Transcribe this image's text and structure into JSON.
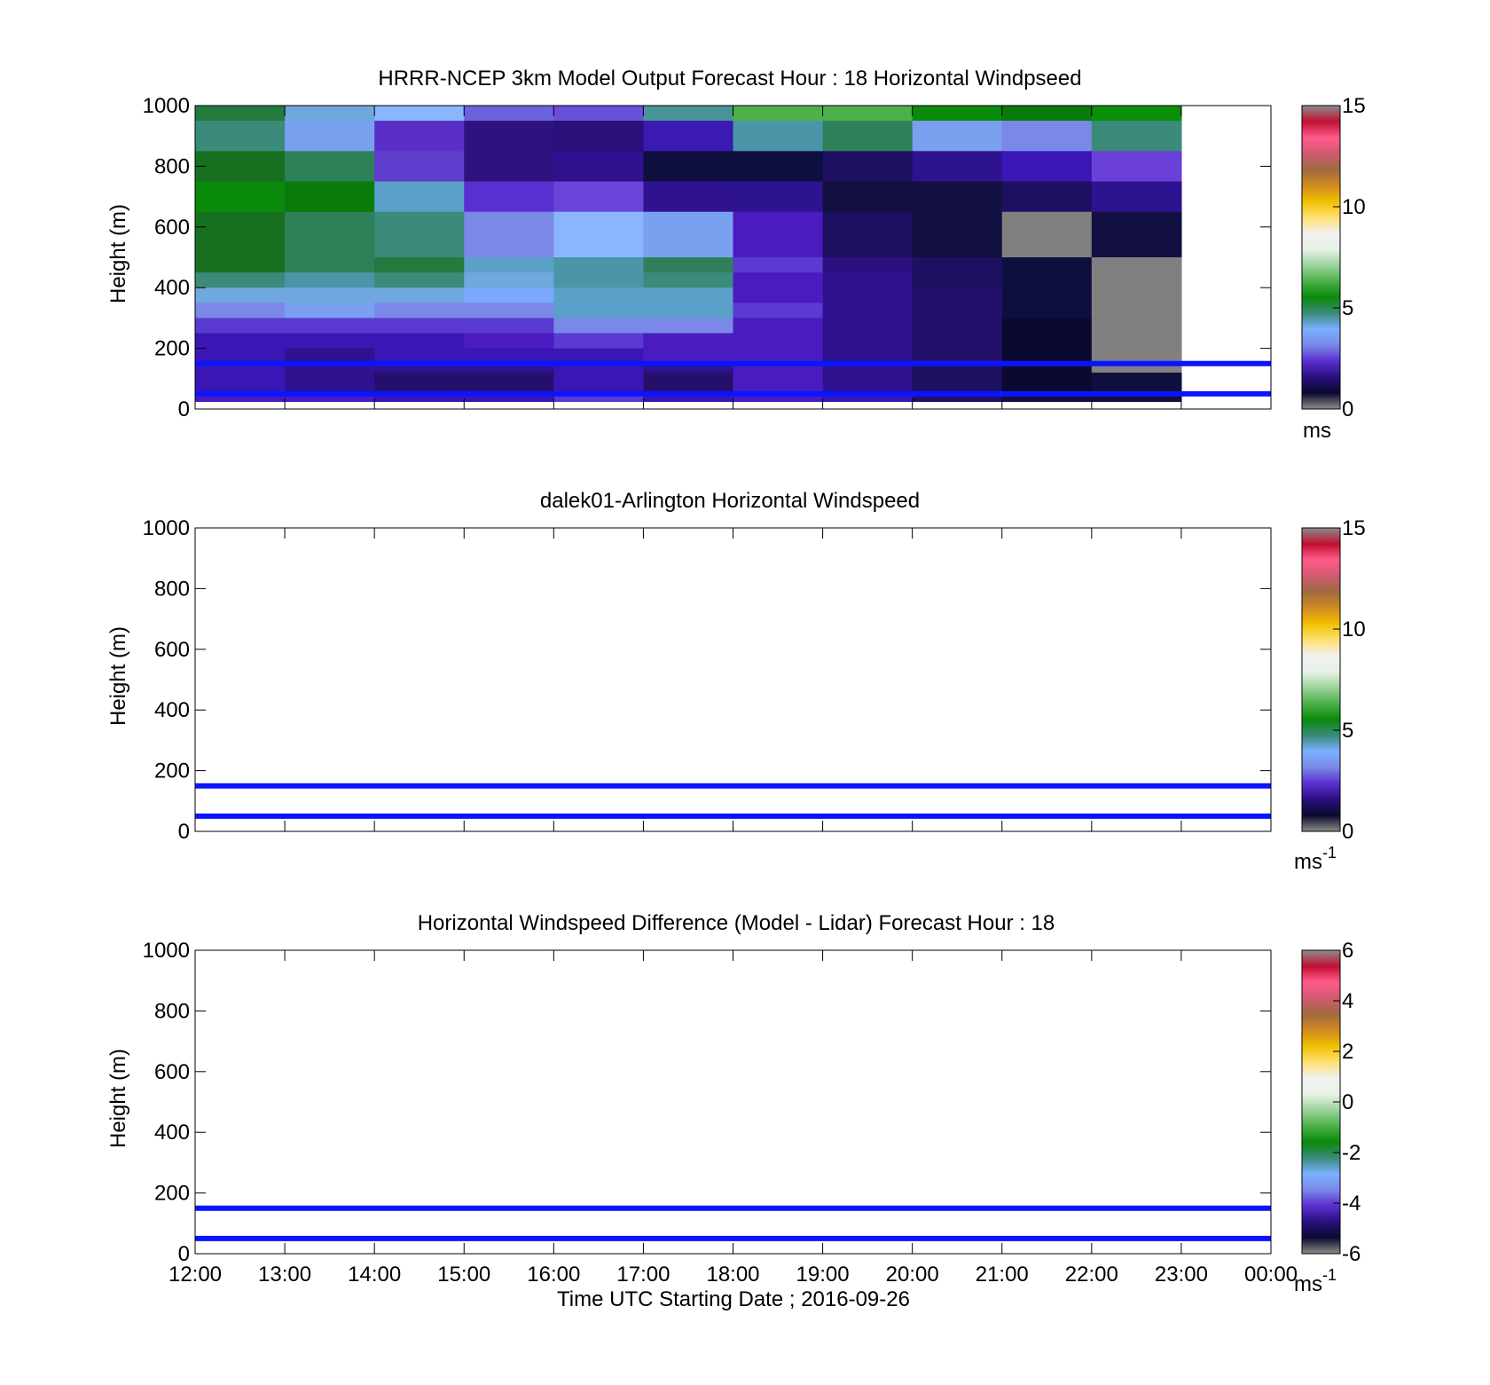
{
  "chart_data": [
    {
      "type": "heatmap",
      "title": "HRRR-NCEP 3km Model Output   Forecast Hour : 18 Horizontal Windpseed",
      "ylabel": "Height (m)",
      "xlabel": "",
      "ylim": [
        0,
        1000
      ],
      "yticks": [
        "0",
        "200",
        "400",
        "600",
        "800",
        "1000"
      ],
      "xticks_shown": false,
      "colorbar": {
        "min": 0,
        "max": 15,
        "ticks": [
          "0",
          "5",
          "10",
          "15"
        ],
        "unit": "ms",
        "unit_sup": ""
      },
      "reference_lines_m": [
        50,
        150
      ],
      "x_start_hours": [
        12,
        13,
        14,
        15,
        16,
        17,
        18,
        19,
        20,
        21,
        22
      ],
      "rows": [
        {
          "y0": 950,
          "y1": 1000,
          "colors": [
            "#237a3e",
            "#6fa8dc",
            "#8ab6ff",
            "#6a63dd",
            "#6a4fd8",
            "#4a9399",
            "#4db04a",
            "#4db04a",
            "#0a8a0a",
            "#0a7a0a",
            "#0a8f0a"
          ]
        },
        {
          "y0": 850,
          "y1": 950,
          "colors": [
            "#3a8b7a",
            "#7aa0f0",
            "#5a2fc8",
            "#2e1280",
            "#2a1078",
            "#3a1ab0",
            "#4a96a8",
            "#2e7f5a",
            "#7aa0f0",
            "#7a88e8",
            "#3a8b7a"
          ]
        },
        {
          "y0": 750,
          "y1": 850,
          "colors": [
            "#167020",
            "#2e8058",
            "#5e3ccc",
            "#2e1280",
            "#2e1290",
            "#0f0f3f",
            "#0f0f3f",
            "#1e1060",
            "#2e1390",
            "#3a16b4",
            "#6a40d8"
          ]
        },
        {
          "y0": 650,
          "y1": 750,
          "colors": [
            "#0a8a0a",
            "#0a7a0a",
            "#5aa0c8",
            "#5a2fd0",
            "#6a44d8",
            "#2e1290",
            "#2e1390",
            "#121040",
            "#121040",
            "#1e1060",
            "#2e1390"
          ]
        },
        {
          "y0": 500,
          "y1": 650,
          "colors": [
            "#167020",
            "#2e8058",
            "#3a8b7a",
            "#7a88e8",
            "#8ab6ff",
            "#7aa0f0",
            "#4a1cc0",
            "#1e1060",
            "#121040",
            "#808080",
            "#121040"
          ]
        },
        {
          "y0": 450,
          "y1": 500,
          "colors": [
            "#167020",
            "#2e8058",
            "#237a3e",
            "#5aa0c8",
            "#4a96a8",
            "#2e7f5a",
            "#5a3ad0",
            "#2a1080",
            "#1e1060",
            "#0f0f3f",
            "#808080"
          ]
        },
        {
          "y0": 400,
          "y1": 450,
          "colors": [
            "#3a8b7a",
            "#4a96a8",
            "#3a8b7a",
            "#6fa8dc",
            "#4a96a8",
            "#3a8b7a",
            "#4a1cc0",
            "#2e1290",
            "#1e1060",
            "#0f0f3f",
            "#808080"
          ]
        },
        {
          "y0": 350,
          "y1": 400,
          "colors": [
            "#6fa8dc",
            "#6fa8dc",
            "#6fa8dc",
            "#7aa8ff",
            "#5aa0c8",
            "#5aa0c8",
            "#4a1cc0",
            "#2e1290",
            "#24106a",
            "#0f0f3f",
            "#808080"
          ]
        },
        {
          "y0": 300,
          "y1": 350,
          "colors": [
            "#7a88e8",
            "#7aa0f0",
            "#7a88e8",
            "#7a88e8",
            "#5aa0c8",
            "#5aa0c8",
            "#5a3ad0",
            "#2e1290",
            "#24106a",
            "#0f0f3f",
            "#808080"
          ]
        },
        {
          "y0": 250,
          "y1": 300,
          "colors": [
            "#5a3ad0",
            "#5a3ad0",
            "#5a3ad0",
            "#5a3ad0",
            "#7a88e8",
            "#7a88e8",
            "#4a1cc0",
            "#2e1290",
            "#24106a",
            "#0a0a30",
            "#808080"
          ]
        },
        {
          "y0": 200,
          "y1": 250,
          "colors": [
            "#3a16b4",
            "#3a16b4",
            "#3a16b4",
            "#4a1cc0",
            "#5a3ad0",
            "#4a1cc0",
            "#4a1cc0",
            "#2e1290",
            "#24106a",
            "#0a0a30",
            "#808080"
          ]
        },
        {
          "y0": 150,
          "y1": 200,
          "colors": [
            "#3a16b4",
            "#2e1290",
            "#3a16b4",
            "#3a16b4",
            "#3a16b4",
            "#4a1cc0",
            "#4a1cc0",
            "#2e1290",
            "#24106a",
            "#0a0a30",
            "#808080"
          ]
        },
        {
          "y0": 120,
          "y1": 150,
          "colors": [
            "#3a16b4",
            "#2e1290",
            "#2e1290",
            "#2e1290",
            "#3a16b4",
            "#2e1290",
            "#4a1cc0",
            "#2e1290",
            "#1e1060",
            "#0a0a30",
            "#808080"
          ]
        },
        {
          "y0": 50,
          "y1": 120,
          "colors": [
            "#3a16b4",
            "#2e1290",
            "#24106a",
            "#24106a",
            "#3a16b4",
            "#24106a",
            "#4a1cc0",
            "#2e1290",
            "#1e1060",
            "#0a0a30",
            "#0f0f3f"
          ]
        },
        {
          "y0": 25,
          "y1": 50,
          "colors": [
            "#4a1cc0",
            "#4a1cc0",
            "#3a16b4",
            "#3a16b4",
            "#5a3ad0",
            "#3a16b4",
            "#4a1cc0",
            "#3a16b4",
            "#24106a",
            "#121040",
            "#121040"
          ]
        }
      ]
    },
    {
      "type": "heatmap",
      "title": "dalek01-Arlington  Horizontal Windspeed",
      "ylabel": "Height (m)",
      "xlabel": "",
      "ylim": [
        0,
        1000
      ],
      "yticks": [
        "0",
        "200",
        "400",
        "600",
        "800",
        "1000"
      ],
      "xticks_shown": false,
      "colorbar": {
        "min": 0,
        "max": 15,
        "ticks": [
          "0",
          "5",
          "10",
          "15"
        ],
        "unit": "ms",
        "unit_sup": "-1"
      },
      "reference_lines_m": [
        50,
        150
      ],
      "rows": []
    },
    {
      "type": "heatmap",
      "title": "Horizontal Windspeed Difference (Model - Lidar) Forecast Hour : 18",
      "ylabel": "Height (m)",
      "xlabel": "Time UTC  Starting Date ; 2016-09-26",
      "ylim": [
        0,
        1000
      ],
      "yticks": [
        "0",
        "200",
        "400",
        "600",
        "800",
        "1000"
      ],
      "xticks_shown": true,
      "colorbar": {
        "min": -6,
        "max": 6,
        "ticks": [
          "-6",
          "-4",
          "-2",
          "0",
          "2",
          "4",
          "6"
        ],
        "unit": "ms",
        "unit_sup": "-1"
      },
      "reference_lines_m": [
        50,
        150
      ],
      "rows": []
    }
  ],
  "xaxis": {
    "ticks": [
      "12:00",
      "13:00",
      "14:00",
      "15:00",
      "16:00",
      "17:00",
      "18:00",
      "19:00",
      "20:00",
      "21:00",
      "22:00",
      "23:00",
      "00:00"
    ]
  },
  "colormap_stops": [
    "#8c8c8c",
    "#0a0a2e",
    "#2a1080",
    "#5a2fd0",
    "#7a88e8",
    "#7ab0ff",
    "#3a8b7a",
    "#0a8a0a",
    "#4db04a",
    "#9bd39b",
    "#e8f2e8",
    "#f0f0f0",
    "#ffe070",
    "#f0c000",
    "#d08a20",
    "#a06a40",
    "#d05a70",
    "#ff5a8a",
    "#c01030",
    "#8c8c8c"
  ]
}
